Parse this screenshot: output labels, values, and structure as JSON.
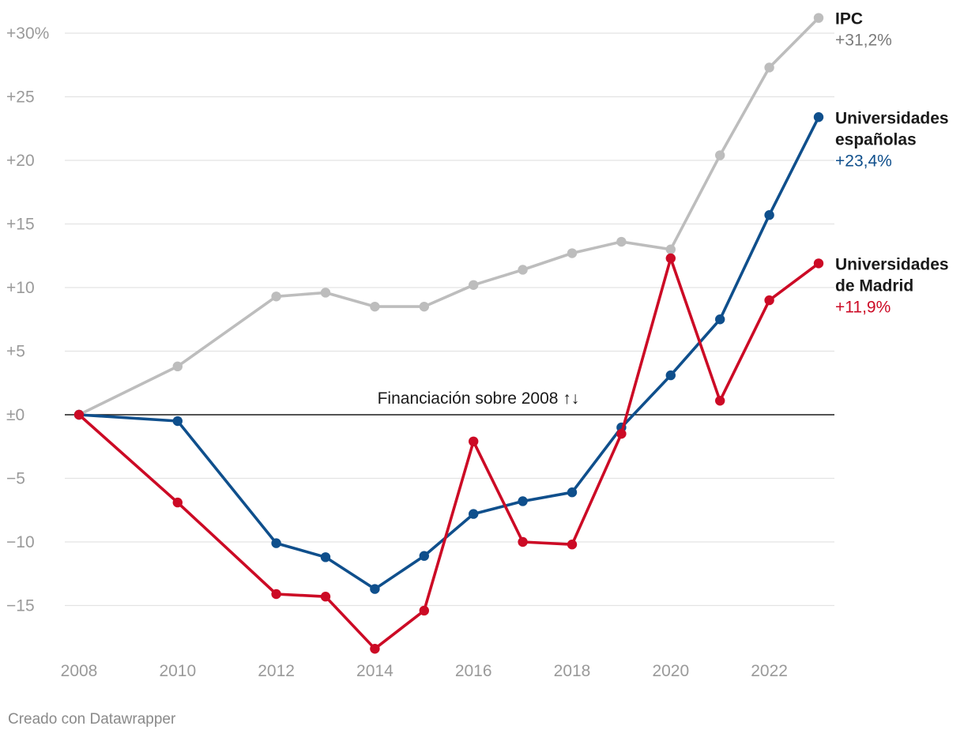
{
  "chart_data": {
    "type": "line",
    "ylim": [
      -18.5,
      33
    ],
    "xlim": [
      2008,
      2023
    ],
    "y_ticks": [
      {
        "value": 30,
        "label": "+30%"
      },
      {
        "value": 25,
        "label": "+25"
      },
      {
        "value": 20,
        "label": "+20"
      },
      {
        "value": 15,
        "label": "+15"
      },
      {
        "value": 10,
        "label": "+10"
      },
      {
        "value": 5,
        "label": "+5"
      },
      {
        "value": 0,
        "label": "±0"
      },
      {
        "value": -5,
        "label": "−5"
      },
      {
        "value": -10,
        "label": "−10"
      },
      {
        "value": -15,
        "label": "−15"
      }
    ],
    "x_ticks": [
      {
        "value": 2008,
        "label": "2008"
      },
      {
        "value": 2010,
        "label": "2010"
      },
      {
        "value": 2012,
        "label": "2012"
      },
      {
        "value": 2014,
        "label": "2014"
      },
      {
        "value": 2016,
        "label": "2016"
      },
      {
        "value": 2018,
        "label": "2018"
      },
      {
        "value": 2020,
        "label": "2020"
      },
      {
        "value": 2022,
        "label": "2022"
      }
    ],
    "annotation": {
      "text": "Financiación sobre 2008 ↑↓",
      "x": 2016.1,
      "y": 0
    },
    "series": [
      {
        "key": "ipc",
        "name_lines": [
          "IPC"
        ],
        "value_label": "+31,2%",
        "color": "#bdbdbd",
        "value_color": "#7a7a7a",
        "x": [
          2008,
          2010,
          2012,
          2013,
          2014,
          2015,
          2016,
          2017,
          2018,
          2019,
          2020,
          2021,
          2022,
          2023
        ],
        "y": [
          0,
          3.8,
          9.3,
          9.6,
          8.5,
          8.5,
          10.2,
          11.4,
          12.7,
          13.6,
          13.0,
          20.4,
          27.3,
          31.2
        ]
      },
      {
        "key": "espanolas",
        "name_lines": [
          "Universidades",
          "españolas"
        ],
        "value_label": "+23,4%",
        "color": "#0f4f8c",
        "value_color": "#0f4f8c",
        "x": [
          2008,
          2010,
          2012,
          2013,
          2014,
          2015,
          2016,
          2017,
          2018,
          2019,
          2020,
          2021,
          2022,
          2023
        ],
        "y": [
          0,
          -0.5,
          -10.1,
          -11.2,
          -13.7,
          -11.1,
          -7.8,
          -6.8,
          -6.1,
          -1.0,
          3.1,
          7.5,
          15.7,
          23.4
        ]
      },
      {
        "key": "madrid",
        "name_lines": [
          "Universidades",
          "de Madrid"
        ],
        "value_label": "+11,9%",
        "color": "#cc0a25",
        "value_color": "#cc0a25",
        "x": [
          2008,
          2010,
          2012,
          2013,
          2014,
          2015,
          2016,
          2017,
          2018,
          2019,
          2020,
          2021,
          2022,
          2023
        ],
        "y": [
          0,
          -6.9,
          -14.1,
          -14.3,
          -18.4,
          -15.4,
          -2.1,
          -10.0,
          -10.2,
          -1.5,
          12.3,
          1.1,
          9.0,
          11.9
        ]
      }
    ]
  },
  "footer": {
    "credit": "Creado con Datawrapper"
  }
}
